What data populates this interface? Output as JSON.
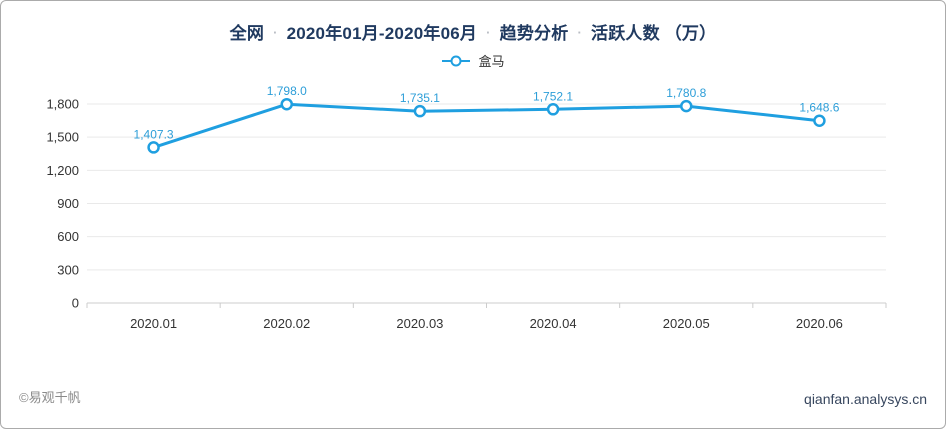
{
  "title": {
    "parts": [
      "全网",
      "2020年01月-2020年06月",
      "趋势分析",
      "活跃人数 （万）"
    ],
    "separator": "·",
    "full_text": "全网 · 2020年01月-2020年06月 · 趋势分析 · 活跃人数 （万）"
  },
  "legend": {
    "series_label": "盒马"
  },
  "footer": {
    "left": "©易观千帆",
    "right": "qianfan.analysys.cn"
  },
  "colors": {
    "line": "#1f9fe0",
    "marker_fill": "#ffffff",
    "data_label": "#2d9ed8",
    "title_text": "#203a60",
    "axis_text": "#333333",
    "grid_line": "#e9e9e9",
    "axis_line": "#cccccc",
    "tick_line": "#cccccc",
    "footer_left_text": "#8a8a8a",
    "footer_right_text": "#37465e",
    "card_border": "#ababab"
  },
  "chart_data": {
    "type": "line",
    "title": "全网 · 2020年01月-2020年06月 · 趋势分析 · 活跃人数 （万）",
    "x": [
      "2020.01",
      "2020.02",
      "2020.03",
      "2020.04",
      "2020.05",
      "2020.06"
    ],
    "series": [
      {
        "name": "盒马",
        "values": [
          1407.3,
          1798.0,
          1735.1,
          1752.1,
          1780.8,
          1648.6
        ],
        "labels": [
          "1,407.3",
          "1,798.0",
          "1,735.1",
          "1,752.1",
          "1,780.8",
          "1,648.6"
        ]
      }
    ],
    "xlabel": "",
    "ylabel": "",
    "ylim": [
      0,
      1800
    ],
    "yticks": [
      0,
      300,
      600,
      900,
      1200,
      1500,
      1800
    ],
    "ytick_labels": [
      "0",
      "300",
      "600",
      "900",
      "1,200",
      "1,500",
      "1,800"
    ],
    "grid": true,
    "legend_position": "top",
    "marker": "hollow-circle"
  }
}
